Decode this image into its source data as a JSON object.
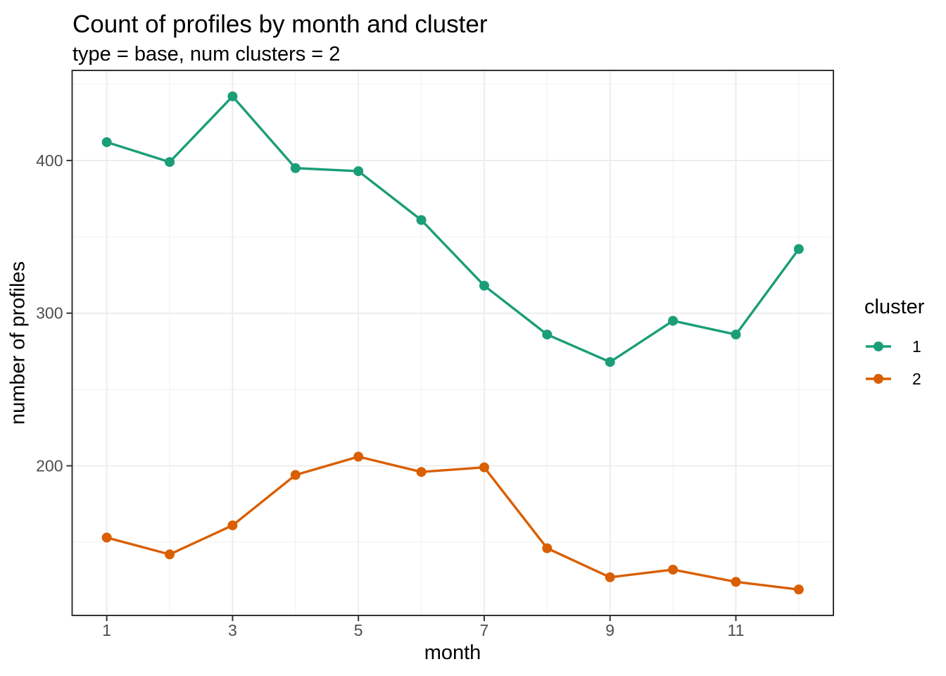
{
  "title": "Count of profiles by month and cluster",
  "subtitle": "type = base, num clusters = 2",
  "chart_data": {
    "type": "line",
    "title": "Count of profiles by month and cluster",
    "subtitle": "type = base, num clusters = 2",
    "xlabel": "month",
    "ylabel": "number of profiles",
    "x": [
      1,
      2,
      3,
      4,
      5,
      6,
      7,
      8,
      9,
      10,
      11,
      12
    ],
    "series": [
      {
        "name": "1",
        "color": "#1b9e77",
        "values": [
          412,
          399,
          442,
          395,
          393,
          361,
          318,
          286,
          268,
          295,
          286,
          342
        ]
      },
      {
        "name": "2",
        "color": "#d95f02",
        "values": [
          153,
          142,
          161,
          194,
          206,
          196,
          199,
          146,
          127,
          132,
          124,
          119
        ]
      }
    ],
    "x_ticks": [
      1,
      3,
      5,
      7,
      9,
      11
    ],
    "x_minor_ticks": [
      2,
      4,
      6,
      8,
      10,
      12
    ],
    "y_ticks": [
      200,
      300,
      400
    ],
    "y_minor_ticks": [
      150,
      250,
      350,
      450
    ],
    "xlim": [
      0.45,
      12.55
    ],
    "ylim": [
      102,
      459
    ],
    "grid": "on",
    "legend_position": "right",
    "legend_title": "cluster",
    "style": {
      "panel_border_color": "#333333",
      "grid_major_color": "#ebebeb",
      "grid_minor_color": "#f2f2f2",
      "tick_color": "#333333",
      "tick_label_color": "#4d4d4d",
      "background": "#ffffff"
    }
  },
  "legend": {
    "title": "cluster",
    "items": [
      {
        "label": "1",
        "color": "#1b9e77"
      },
      {
        "label": "2",
        "color": "#d95f02"
      }
    ]
  }
}
